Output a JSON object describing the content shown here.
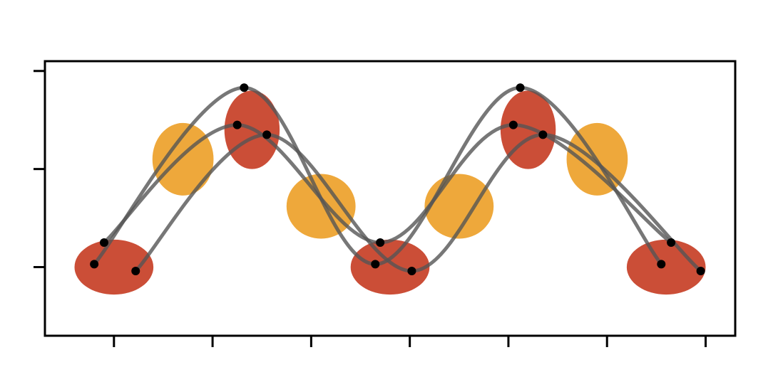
{
  "colors": {
    "background": "#ffffff",
    "frame": "#000000",
    "red_ellipse": "#c8442c",
    "orange_ellipse": "#eda12a",
    "curve": "#555555",
    "point": "#000000"
  },
  "x_ticks": [
    0,
    1,
    2,
    3,
    4,
    5,
    6
  ],
  "y_ticks": [
    0,
    1,
    2
  ],
  "x_range": [
    -0.7,
    6.3
  ],
  "y_range": [
    -0.7,
    2.1
  ],
  "red_regions": [
    {
      "x": 0.0,
      "y": 0.0,
      "w": 0.8,
      "h": 0.56
    },
    {
      "x": 1.4,
      "y": 1.4,
      "w": 0.56,
      "h": 0.8
    },
    {
      "x": 2.8,
      "y": 0.0,
      "w": 0.8,
      "h": 0.56
    },
    {
      "x": 4.2,
      "y": 1.4,
      "w": 0.56,
      "h": 0.8
    },
    {
      "x": 5.6,
      "y": 0.0,
      "w": 0.8,
      "h": 0.56
    }
  ],
  "orange_regions": [
    {
      "x": 0.7,
      "y": 1.1,
      "w": 0.62,
      "h": 0.74
    },
    {
      "x": 2.1,
      "y": 0.62,
      "w": 0.7,
      "h": 0.66
    },
    {
      "x": 3.5,
      "y": 0.62,
      "w": 0.7,
      "h": 0.66
    },
    {
      "x": 4.9,
      "y": 1.1,
      "w": 0.62,
      "h": 0.74
    }
  ],
  "curves": [
    {
      "points": [
        [
          -0.2,
          0.03
        ],
        [
          1.32,
          1.83
        ],
        [
          2.65,
          0.03
        ],
        [
          4.12,
          1.83
        ],
        [
          5.55,
          0.03
        ]
      ]
    },
    {
      "points": [
        [
          -0.1,
          0.25
        ],
        [
          1.25,
          1.45
        ],
        [
          2.7,
          0.25
        ],
        [
          4.05,
          1.45
        ],
        [
          5.65,
          0.25
        ]
      ]
    },
    {
      "points": [
        [
          0.22,
          -0.04
        ],
        [
          1.55,
          1.35
        ],
        [
          3.02,
          -0.04
        ],
        [
          4.35,
          1.35
        ],
        [
          5.95,
          -0.04
        ]
      ]
    }
  ]
}
